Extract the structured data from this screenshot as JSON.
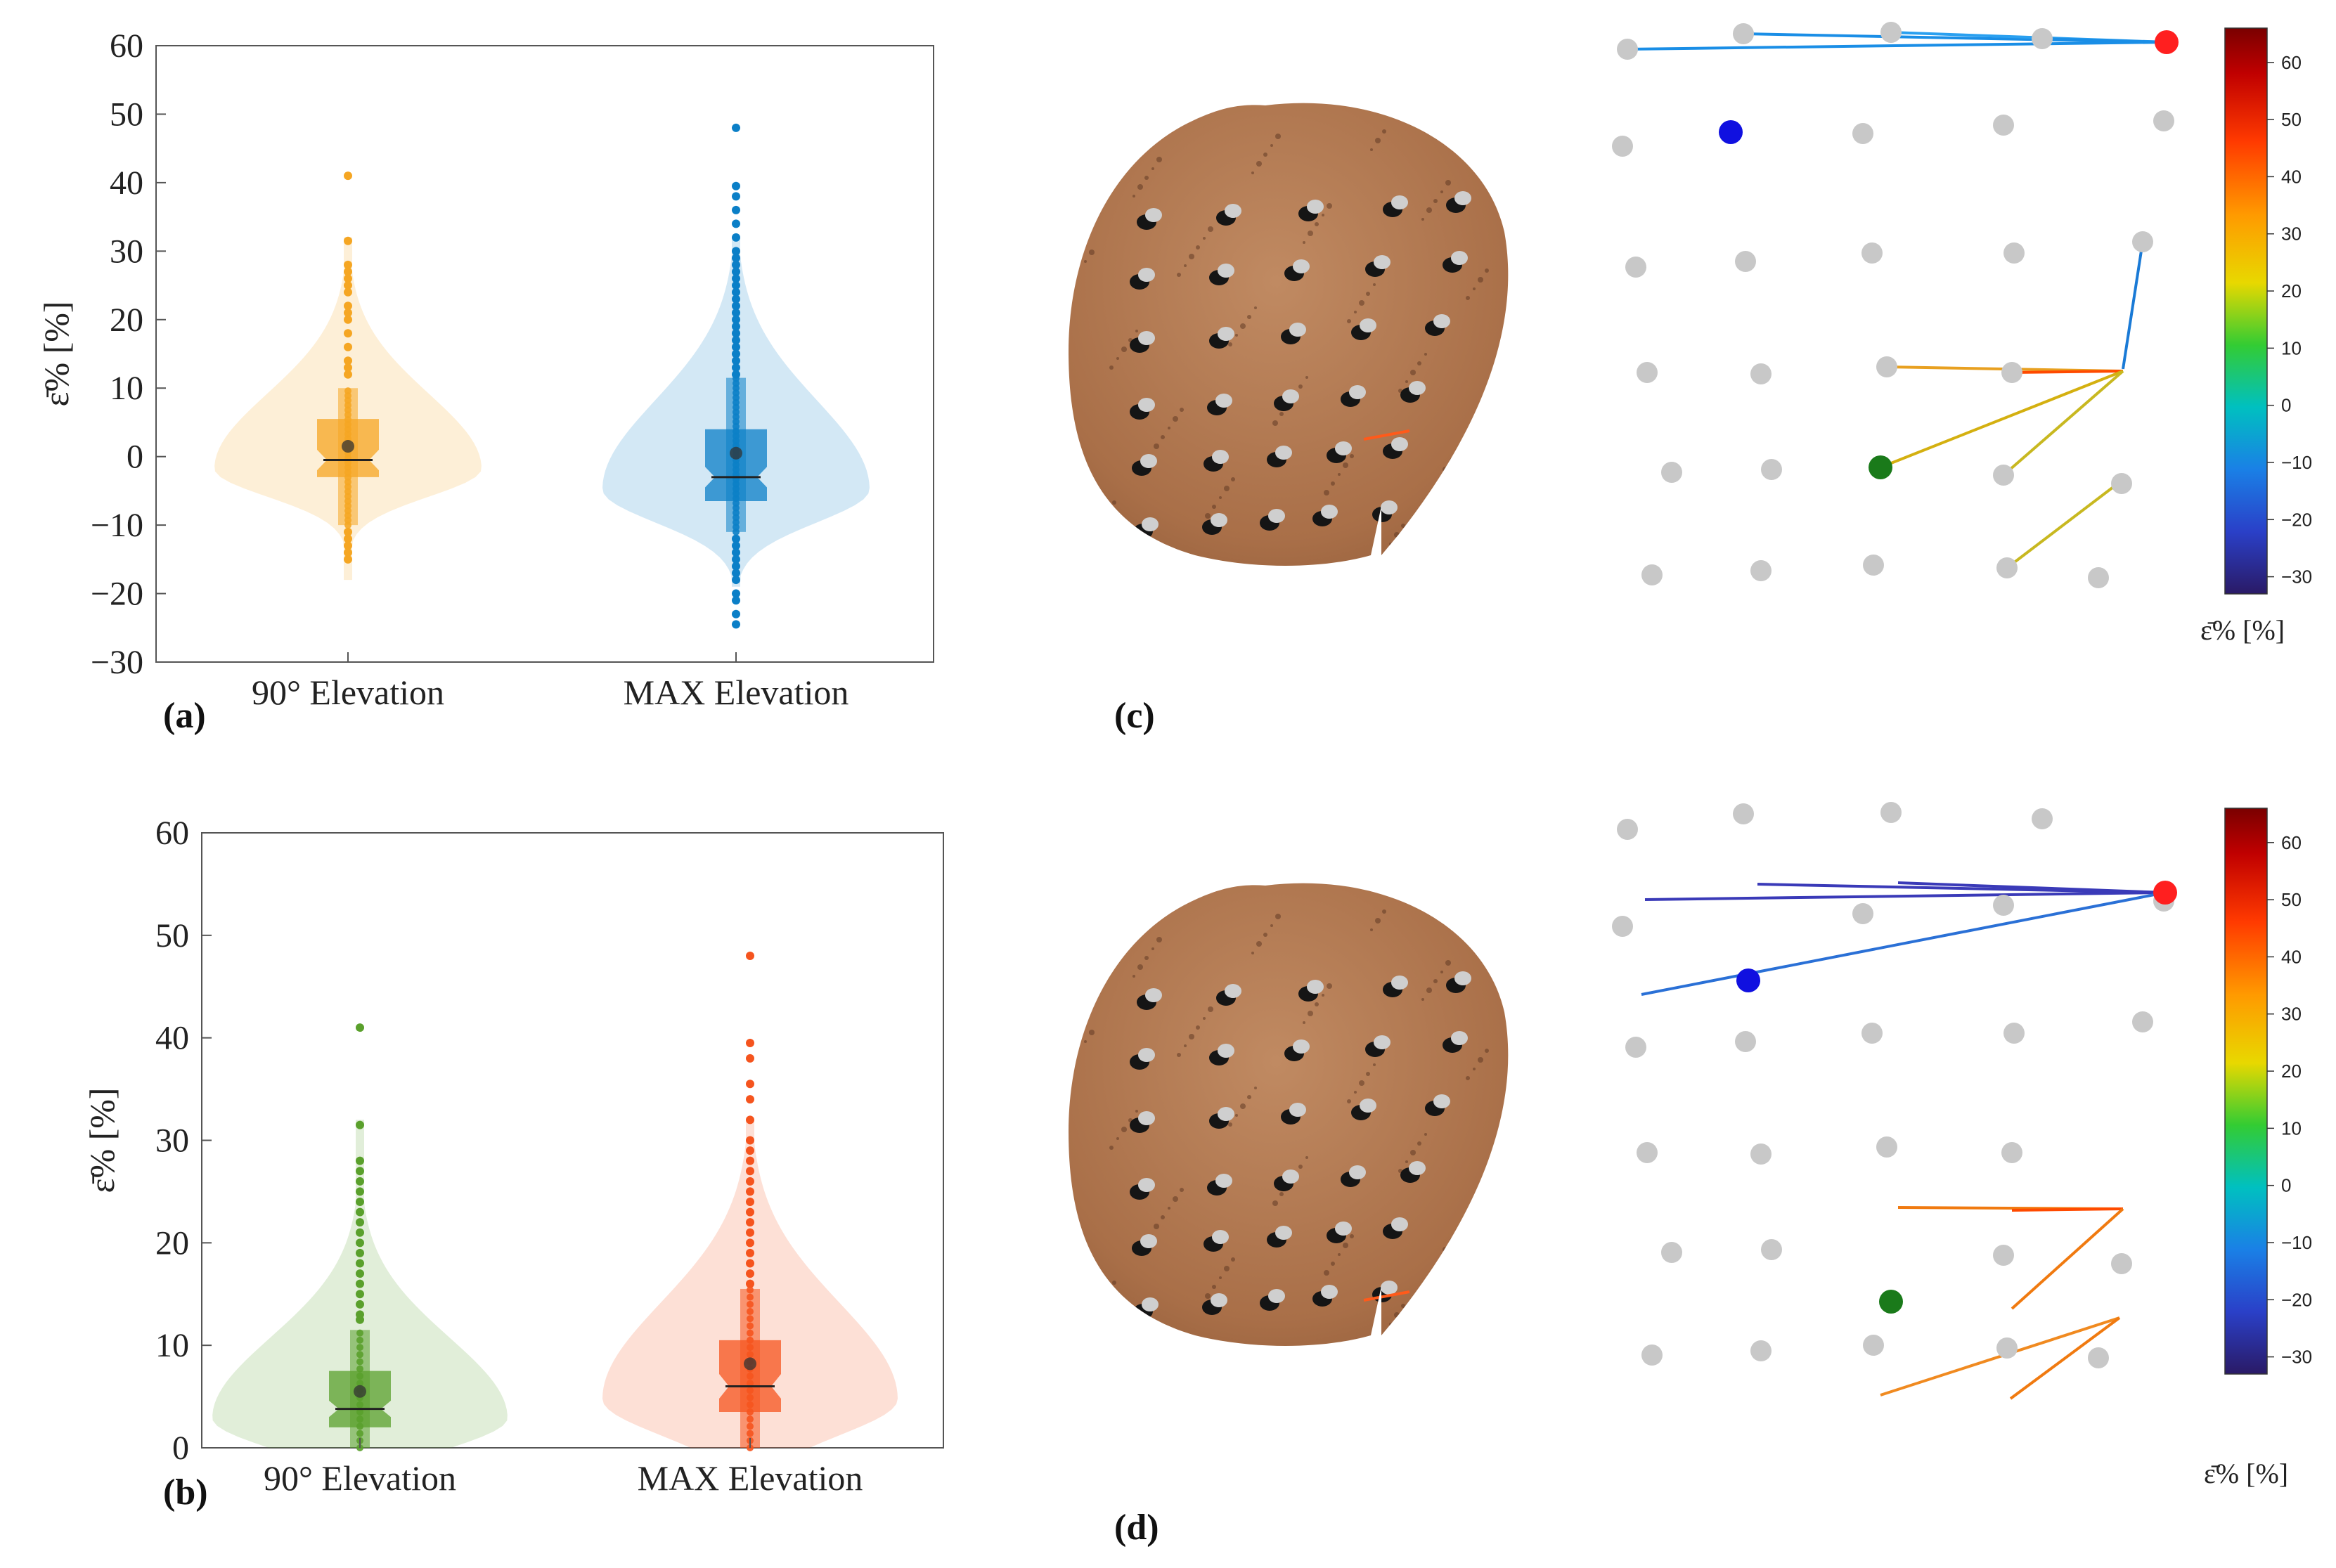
{
  "chart_data": [
    {
      "panel": "(a)",
      "type": "violin",
      "ylabel": "ε̄% [%]",
      "ylim": [
        -30,
        60
      ],
      "yticks": [
        -30,
        -20,
        -10,
        0,
        10,
        20,
        30,
        40,
        50,
        60
      ],
      "categories": [
        "90° Elevation",
        "MAX Elevation"
      ],
      "series": [
        {
          "category": "90° Elevation",
          "color": "#f5a623",
          "q1": -3,
          "median": -0.5,
          "q3": 5.5,
          "mean": 1.5,
          "whisker_low": -10,
          "whisker_high": 10,
          "notch": 1.5,
          "outliers": [
            41,
            31.5,
            28,
            27,
            26,
            25,
            24,
            22,
            21,
            20,
            18,
            16,
            14,
            13,
            12,
            -11,
            -12,
            -13,
            -14,
            -15
          ]
        },
        {
          "category": "MAX Elevation",
          "color": "#0b7fc7",
          "q1": -6.5,
          "median": -3,
          "q3": 4,
          "mean": 0.5,
          "whisker_low": -11,
          "whisker_high": 11.5,
          "notch": 1.5,
          "outliers": [
            48,
            39.5,
            38,
            36,
            34,
            32,
            30,
            29,
            28,
            27,
            26,
            25,
            24,
            23,
            22,
            21,
            20,
            19,
            18,
            17,
            16,
            15,
            14,
            13,
            12,
            -12,
            -13,
            -14,
            -15,
            -16,
            -17,
            -18,
            -20,
            -21,
            -23,
            -24.5
          ]
        }
      ]
    },
    {
      "panel": "(b)",
      "type": "violin",
      "ylabel": "ε̄% [%]",
      "ylim": [
        0,
        60
      ],
      "yticks": [
        0,
        10,
        20,
        30,
        40,
        50,
        60
      ],
      "categories": [
        "90° Elevation",
        "MAX Elevation"
      ],
      "series": [
        {
          "category": "90° Elevation",
          "color": "#5aa02c",
          "q1": 2,
          "median": 3.8,
          "q3": 7.5,
          "mean": 5.5,
          "whisker_low": 0,
          "whisker_high": 11.5,
          "notch": 0.8,
          "outliers": [
            41,
            31.5,
            28,
            27,
            26,
            25,
            24,
            23,
            22,
            21,
            20,
            19,
            18,
            17,
            16,
            15,
            14,
            13,
            12.5
          ]
        },
        {
          "category": "MAX Elevation",
          "color": "#f5541e",
          "q1": 3.5,
          "median": 6,
          "q3": 10.5,
          "mean": 8.2,
          "whisker_low": 0,
          "whisker_high": 15.5,
          "notch": 1.2,
          "outliers": [
            48,
            39.5,
            38,
            35.5,
            34,
            32,
            30,
            29,
            28,
            27,
            26,
            25,
            24,
            23,
            22,
            21,
            20,
            19,
            18,
            17,
            16
          ]
        }
      ]
    }
  ],
  "panel_c": {
    "label": "(c)",
    "colorbar": {
      "ticks": [
        60,
        50,
        40,
        30,
        20,
        10,
        0,
        -10,
        -20,
        -30
      ],
      "label": "ε̄% [%]"
    }
  },
  "panel_d": {
    "label": "(d)",
    "colorbar": {
      "ticks": [
        60,
        50,
        40,
        30,
        20,
        10,
        0,
        -10,
        -20,
        -30
      ],
      "label": "ε̄% [%]"
    }
  },
  "colors": {
    "marker_gray": "#c8c8c8",
    "red": "#ff1f1f",
    "blue": "#1010e0",
    "green": "#1a7a1a",
    "skin": "#b37c56"
  }
}
